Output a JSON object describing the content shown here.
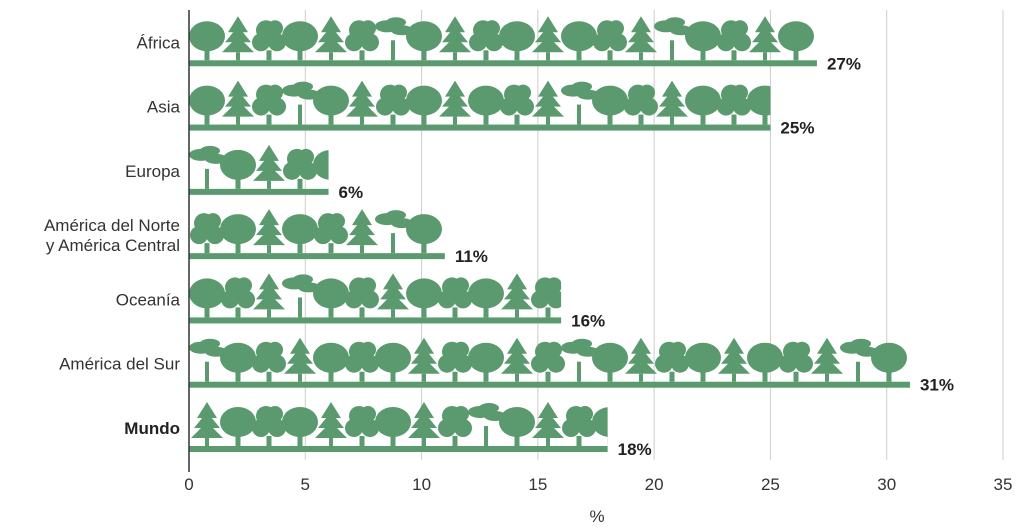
{
  "colors": {
    "bar": "#5a9a6e",
    "grid": "#cccccc",
    "axis": "#333333",
    "text": "#333333"
  },
  "chart_data": {
    "type": "bar",
    "orientation": "horizontal",
    "categories": [
      [
        "África"
      ],
      [
        "Asia"
      ],
      [
        "Europa"
      ],
      [
        "América del Norte",
        "y América Central"
      ],
      [
        "Oceanía"
      ],
      [
        "América del Sur"
      ],
      [
        "Mundo"
      ]
    ],
    "values": [
      27,
      25,
      6,
      11,
      16,
      31,
      18
    ],
    "value_labels": [
      "27%",
      "25%",
      "6%",
      "11%",
      "16%",
      "31%",
      "18%"
    ],
    "xlim": [
      0,
      35
    ],
    "xticks": [
      0,
      5,
      10,
      15,
      20,
      25,
      30,
      35
    ],
    "xlabel": "%",
    "grid": true,
    "bar_style": "pictogram-trees"
  }
}
